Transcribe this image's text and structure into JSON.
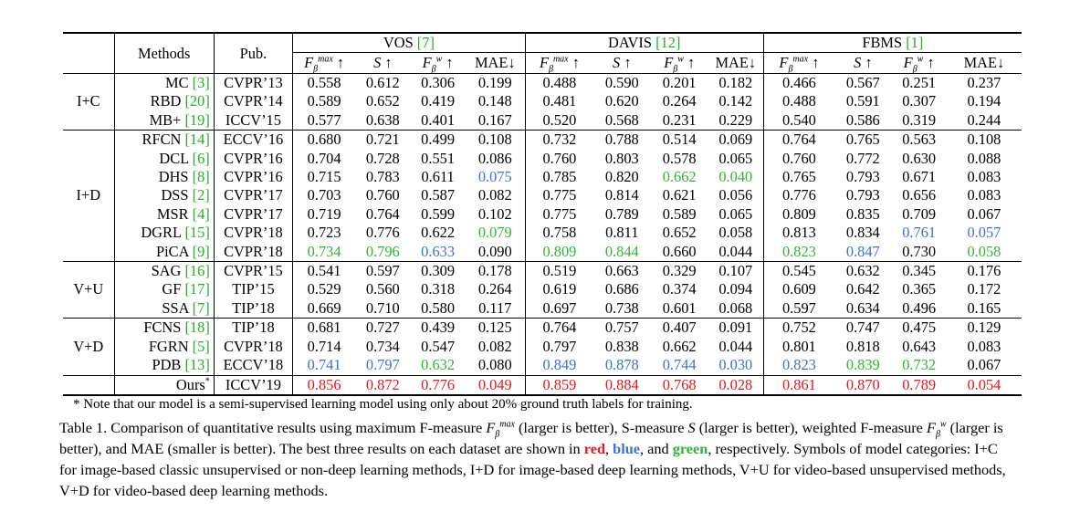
{
  "header": {
    "methods": "Methods",
    "pub": "Pub.",
    "datasets": [
      {
        "name": "VOS",
        "cite": "[7]"
      },
      {
        "name": "DAVIS",
        "cite": "[12]"
      },
      {
        "name": "FBMS",
        "cite": "[1]"
      }
    ],
    "metrics": [
      "Fβmax ↑",
      "S ↑",
      "Fβw ↑",
      "MAE↓"
    ]
  },
  "groups": [
    {
      "label": "I+C",
      "rows": [
        {
          "method": "MC",
          "cite": "[3]",
          "pub": "CVPR’13",
          "vals": [
            "0.558",
            "0.612",
            "0.306",
            "0.199",
            "0.488",
            "0.590",
            "0.201",
            "0.182",
            "0.466",
            "0.567",
            "0.251",
            "0.237"
          ],
          "styles": [
            "",
            "",
            "",
            "",
            "",
            "",
            "",
            "",
            "",
            "",
            "",
            ""
          ]
        },
        {
          "method": "RBD",
          "cite": "[20]",
          "pub": "CVPR’14",
          "vals": [
            "0.589",
            "0.652",
            "0.419",
            "0.148",
            "0.481",
            "0.620",
            "0.264",
            "0.142",
            "0.488",
            "0.591",
            "0.307",
            "0.194"
          ],
          "styles": [
            "",
            "",
            "",
            "",
            "",
            "",
            "",
            "",
            "",
            "",
            "",
            ""
          ]
        },
        {
          "method": "MB+",
          "cite": "[19]",
          "pub": "ICCV’15",
          "vals": [
            "0.577",
            "0.638",
            "0.401",
            "0.167",
            "0.520",
            "0.568",
            "0.231",
            "0.229",
            "0.540",
            "0.586",
            "0.319",
            "0.244"
          ],
          "styles": [
            "",
            "",
            "",
            "",
            "",
            "",
            "",
            "",
            "",
            "",
            "",
            ""
          ]
        }
      ]
    },
    {
      "label": "I+D",
      "rows": [
        {
          "method": "RFCN",
          "cite": "[14]",
          "pub": "ECCV’16",
          "vals": [
            "0.680",
            "0.721",
            "0.499",
            "0.108",
            "0.732",
            "0.788",
            "0.514",
            "0.069",
            "0.764",
            "0.765",
            "0.563",
            "0.108"
          ],
          "styles": [
            "",
            "",
            "",
            "",
            "",
            "",
            "",
            "",
            "",
            "",
            "",
            ""
          ]
        },
        {
          "method": "DCL",
          "cite": "[6]",
          "pub": "CVPR’16",
          "vals": [
            "0.704",
            "0.728",
            "0.551",
            "0.086",
            "0.760",
            "0.803",
            "0.578",
            "0.065",
            "0.760",
            "0.772",
            "0.630",
            "0.088"
          ],
          "styles": [
            "",
            "",
            "",
            "",
            "",
            "",
            "",
            "",
            "",
            "",
            "",
            ""
          ]
        },
        {
          "method": "DHS",
          "cite": "[8]",
          "pub": "CVPR’16",
          "vals": [
            "0.715",
            "0.783",
            "0.611",
            "0.075",
            "0.785",
            "0.820",
            "0.662",
            "0.040",
            "0.765",
            "0.793",
            "0.671",
            "0.083"
          ],
          "styles": [
            "",
            "",
            "",
            "blue",
            "",
            "",
            "green",
            "green",
            "",
            "",
            "",
            ""
          ]
        },
        {
          "method": "DSS",
          "cite": "[2]",
          "pub": "CVPR’17",
          "vals": [
            "0.703",
            "0.760",
            "0.587",
            "0.082",
            "0.775",
            "0.814",
            "0.621",
            "0.056",
            "0.776",
            "0.793",
            "0.656",
            "0.083"
          ],
          "styles": [
            "",
            "",
            "",
            "",
            "",
            "",
            "",
            "",
            "",
            "",
            "",
            ""
          ]
        },
        {
          "method": "MSR",
          "cite": "[4]",
          "pub": "CVPR’17",
          "vals": [
            "0.719",
            "0.764",
            "0.599",
            "0.102",
            "0.775",
            "0.789",
            "0.589",
            "0.065",
            "0.809",
            "0.835",
            "0.709",
            "0.067"
          ],
          "styles": [
            "",
            "",
            "",
            "",
            "",
            "",
            "",
            "",
            "",
            "",
            "",
            ""
          ]
        },
        {
          "method": "DGRL",
          "cite": "[15]",
          "pub": "CVPR’18",
          "vals": [
            "0.723",
            "0.776",
            "0.622",
            "0.079",
            "0.758",
            "0.811",
            "0.652",
            "0.058",
            "0.813",
            "0.834",
            "0.761",
            "0.057"
          ],
          "styles": [
            "",
            "",
            "",
            "green",
            "",
            "",
            "",
            "",
            "",
            "",
            "blue",
            "blue"
          ]
        },
        {
          "method": "PiCA",
          "cite": "[9]",
          "pub": "CVPR’18",
          "vals": [
            "0.734",
            "0.796",
            "0.633",
            "0.090",
            "0.809",
            "0.844",
            "0.660",
            "0.044",
            "0.823",
            "0.847",
            "0.730",
            "0.058"
          ],
          "styles": [
            "green",
            "green",
            "blue",
            "",
            "green",
            "green",
            "",
            "",
            "green",
            "blue",
            "",
            "green"
          ]
        }
      ]
    },
    {
      "label": "V+U",
      "rows": [
        {
          "method": "SAG",
          "cite": "[16]",
          "pub": "CVPR’15",
          "vals": [
            "0.541",
            "0.597",
            "0.309",
            "0.178",
            "0.519",
            "0.663",
            "0.329",
            "0.107",
            "0.545",
            "0.632",
            "0.345",
            "0.176"
          ],
          "styles": [
            "",
            "",
            "",
            "",
            "",
            "",
            "",
            "",
            "",
            "",
            "",
            ""
          ]
        },
        {
          "method": "GF",
          "cite": "[17]",
          "pub": "TIP’15",
          "vals": [
            "0.529",
            "0.560",
            "0.318",
            "0.264",
            "0.619",
            "0.686",
            "0.374",
            "0.094",
            "0.609",
            "0.642",
            "0.365",
            "0.172"
          ],
          "styles": [
            "",
            "",
            "",
            "",
            "",
            "",
            "",
            "",
            "",
            "",
            "",
            ""
          ]
        },
        {
          "method": "SSA",
          "cite": "[7]",
          "pub": "TIP’18",
          "vals": [
            "0.669",
            "0.710",
            "0.580",
            "0.117",
            "0.697",
            "0.738",
            "0.601",
            "0.068",
            "0.597",
            "0.634",
            "0.496",
            "0.165"
          ],
          "styles": [
            "",
            "",
            "",
            "",
            "",
            "",
            "",
            "",
            "",
            "",
            "",
            ""
          ]
        }
      ]
    },
    {
      "label": "V+D",
      "rows": [
        {
          "method": "FCNS",
          "cite": "[18]",
          "pub": "TIP’18",
          "vals": [
            "0.681",
            "0.727",
            "0.439",
            "0.125",
            "0.764",
            "0.757",
            "0.407",
            "0.091",
            "0.752",
            "0.747",
            "0.475",
            "0.129"
          ],
          "styles": [
            "",
            "",
            "",
            "",
            "",
            "",
            "",
            "",
            "",
            "",
            "",
            ""
          ]
        },
        {
          "method": "FGRN",
          "cite": "[5]",
          "pub": "CVPR’18",
          "vals": [
            "0.714",
            "0.734",
            "0.547",
            "0.082",
            "0.797",
            "0.838",
            "0.662",
            "0.044",
            "0.801",
            "0.818",
            "0.643",
            "0.083"
          ],
          "styles": [
            "",
            "",
            "",
            "",
            "",
            "",
            "",
            "",
            "",
            "",
            "",
            ""
          ]
        },
        {
          "method": "PDB",
          "cite": "[13]",
          "pub": "ECCV’18",
          "vals": [
            "0.741",
            "0.797",
            "0.632",
            "0.080",
            "0.849",
            "0.878",
            "0.744",
            "0.030",
            "0.823",
            "0.839",
            "0.732",
            "0.067"
          ],
          "styles": [
            "blue",
            "blue",
            "green",
            "",
            "blue",
            "blue",
            "blue",
            "blue",
            "blue",
            "green",
            "green",
            ""
          ]
        }
      ]
    }
  ],
  "ours": {
    "method": "Ours",
    "mark": "*",
    "pub": "ICCV’19",
    "vals": [
      "0.856",
      "0.872",
      "0.776",
      "0.049",
      "0.859",
      "0.884",
      "0.768",
      "0.028",
      "0.861",
      "0.870",
      "0.789",
      "0.054"
    ],
    "styles": [
      "red",
      "red",
      "red",
      "red",
      "red",
      "red",
      "red",
      "red",
      "red",
      "red",
      "red",
      "red"
    ]
  },
  "note": "* Note that our model is a semi-supervised learning model using only about 20% ground truth labels for training.",
  "caption": {
    "part1": "Table 1. Comparison of quantitative results using maximum F-measure ",
    "part2": " (larger is better), S-measure ",
    "part3": " (larger is better), weighted F-measure ",
    "part4": " (larger is better), and MAE (smaller is better). The best three results on each dataset are shown in ",
    "red": "red",
    "sep1": ", ",
    "blue": "blue",
    "sep2": ", and ",
    "green": "green",
    "part5": ", respectively. Symbols of model categories: I+C for image-based classic unsupervised or non-deep learning methods, I+D for image-based deep learning methods, V+U for video-based unsupervised methods, V+D for video-based deep learning methods."
  }
}
